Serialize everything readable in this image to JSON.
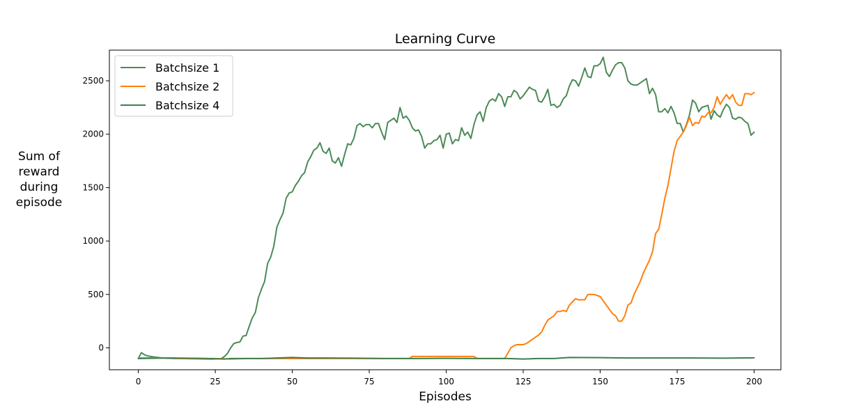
{
  "chart_data": {
    "type": "line",
    "title": "Learning Curve",
    "xlabel": "Episodes",
    "ylabel_lines": [
      "Sum of",
      "reward",
      "during",
      "episode"
    ],
    "xlim": [
      -9.4,
      208.7
    ],
    "ylim": [
      -205,
      2787
    ],
    "xticks": [
      0,
      25,
      50,
      75,
      100,
      125,
      150,
      175,
      200
    ],
    "yticks": [
      0,
      500,
      1000,
      1500,
      2000,
      2500
    ],
    "legend_position": "top-left",
    "grid": false,
    "series": [
      {
        "name": "Batchsize 1",
        "color": "#4a8a57",
        "points": [
          [
            0,
            -100
          ],
          [
            1,
            -45
          ],
          [
            2,
            -65
          ],
          [
            3,
            -75
          ],
          [
            5,
            -85
          ],
          [
            8,
            -95
          ],
          [
            12,
            -100
          ],
          [
            18,
            -102
          ],
          [
            24,
            -105
          ],
          [
            27,
            -100
          ],
          [
            28,
            -80
          ],
          [
            29,
            -50
          ],
          [
            30,
            0
          ],
          [
            31,
            40
          ],
          [
            32,
            50
          ],
          [
            33,
            55
          ],
          [
            34,
            110
          ],
          [
            35,
            115
          ],
          [
            36,
            200
          ],
          [
            37,
            280
          ],
          [
            38,
            330
          ],
          [
            39,
            470
          ],
          [
            40,
            550
          ],
          [
            41,
            620
          ],
          [
            42,
            790
          ],
          [
            43,
            850
          ],
          [
            44,
            950
          ],
          [
            45,
            1130
          ],
          [
            46,
            1200
          ],
          [
            47,
            1260
          ],
          [
            48,
            1400
          ],
          [
            49,
            1450
          ],
          [
            50,
            1460
          ],
          [
            51,
            1520
          ],
          [
            52,
            1560
          ],
          [
            53,
            1610
          ],
          [
            54,
            1640
          ],
          [
            55,
            1740
          ],
          [
            56,
            1790
          ],
          [
            57,
            1850
          ],
          [
            58,
            1870
          ],
          [
            59,
            1920
          ],
          [
            60,
            1840
          ],
          [
            61,
            1820
          ],
          [
            62,
            1870
          ],
          [
            63,
            1750
          ],
          [
            64,
            1730
          ],
          [
            65,
            1780
          ],
          [
            66,
            1700
          ],
          [
            67,
            1810
          ],
          [
            68,
            1910
          ],
          [
            69,
            1900
          ],
          [
            70,
            1960
          ],
          [
            71,
            2080
          ],
          [
            72,
            2100
          ],
          [
            73,
            2070
          ],
          [
            74,
            2090
          ],
          [
            75,
            2090
          ],
          [
            76,
            2060
          ],
          [
            77,
            2100
          ],
          [
            78,
            2100
          ],
          [
            79,
            2020
          ],
          [
            80,
            1950
          ],
          [
            81,
            2110
          ],
          [
            82,
            2130
          ],
          [
            83,
            2150
          ],
          [
            84,
            2110
          ],
          [
            85,
            2250
          ],
          [
            86,
            2150
          ],
          [
            87,
            2170
          ],
          [
            88,
            2130
          ],
          [
            89,
            2060
          ],
          [
            90,
            2030
          ],
          [
            91,
            2040
          ],
          [
            92,
            1980
          ],
          [
            93,
            1870
          ],
          [
            94,
            1910
          ],
          [
            95,
            1910
          ],
          [
            96,
            1940
          ],
          [
            97,
            1950
          ],
          [
            98,
            1990
          ],
          [
            99,
            1870
          ],
          [
            100,
            2000
          ],
          [
            101,
            2010
          ],
          [
            102,
            1910
          ],
          [
            103,
            1950
          ],
          [
            104,
            1940
          ],
          [
            105,
            2060
          ],
          [
            106,
            1990
          ],
          [
            107,
            2020
          ],
          [
            108,
            1960
          ],
          [
            109,
            2090
          ],
          [
            110,
            2180
          ],
          [
            111,
            2210
          ],
          [
            112,
            2120
          ],
          [
            113,
            2250
          ],
          [
            114,
            2310
          ],
          [
            115,
            2330
          ],
          [
            116,
            2310
          ],
          [
            117,
            2380
          ],
          [
            118,
            2350
          ],
          [
            119,
            2260
          ],
          [
            120,
            2350
          ],
          [
            121,
            2350
          ],
          [
            122,
            2410
          ],
          [
            123,
            2390
          ],
          [
            124,
            2330
          ],
          [
            125,
            2360
          ],
          [
            126,
            2400
          ],
          [
            127,
            2440
          ],
          [
            128,
            2420
          ],
          [
            129,
            2410
          ],
          [
            130,
            2310
          ],
          [
            131,
            2300
          ],
          [
            132,
            2350
          ],
          [
            133,
            2420
          ],
          [
            134,
            2270
          ],
          [
            135,
            2280
          ],
          [
            136,
            2250
          ],
          [
            137,
            2270
          ],
          [
            138,
            2330
          ],
          [
            139,
            2360
          ],
          [
            140,
            2450
          ],
          [
            141,
            2510
          ],
          [
            142,
            2500
          ],
          [
            143,
            2450
          ],
          [
            144,
            2530
          ],
          [
            145,
            2620
          ],
          [
            146,
            2540
          ],
          [
            147,
            2530
          ],
          [
            148,
            2640
          ],
          [
            149,
            2640
          ],
          [
            150,
            2660
          ],
          [
            151,
            2720
          ],
          [
            152,
            2580
          ],
          [
            153,
            2540
          ],
          [
            154,
            2600
          ],
          [
            155,
            2650
          ],
          [
            156,
            2670
          ],
          [
            157,
            2670
          ],
          [
            158,
            2620
          ],
          [
            159,
            2500
          ],
          [
            160,
            2470
          ],
          [
            161,
            2460
          ],
          [
            162,
            2460
          ],
          [
            163,
            2480
          ],
          [
            164,
            2500
          ],
          [
            165,
            2520
          ],
          [
            166,
            2380
          ],
          [
            167,
            2430
          ],
          [
            168,
            2370
          ],
          [
            169,
            2210
          ],
          [
            170,
            2210
          ],
          [
            171,
            2240
          ],
          [
            172,
            2200
          ],
          [
            173,
            2260
          ],
          [
            174,
            2200
          ],
          [
            175,
            2100
          ],
          [
            176,
            2100
          ],
          [
            177,
            2020
          ],
          [
            178,
            2090
          ],
          [
            179,
            2180
          ],
          [
            180,
            2320
          ],
          [
            181,
            2290
          ],
          [
            182,
            2210
          ],
          [
            183,
            2250
          ],
          [
            184,
            2260
          ],
          [
            185,
            2270
          ],
          [
            186,
            2140
          ],
          [
            187,
            2220
          ],
          [
            188,
            2180
          ],
          [
            189,
            2160
          ],
          [
            190,
            2230
          ],
          [
            191,
            2280
          ],
          [
            192,
            2250
          ],
          [
            193,
            2150
          ],
          [
            194,
            2140
          ],
          [
            195,
            2160
          ],
          [
            196,
            2150
          ],
          [
            197,
            2120
          ],
          [
            198,
            2100
          ],
          [
            199,
            1990
          ],
          [
            200,
            2020
          ]
        ]
      },
      {
        "name": "Batchsize 2",
        "color": "#ff7f0e",
        "points": [
          [
            0,
            -95
          ],
          [
            5,
            -93
          ],
          [
            10,
            -95
          ],
          [
            15,
            -100
          ],
          [
            20,
            -100
          ],
          [
            25,
            -100
          ],
          [
            30,
            -105
          ],
          [
            35,
            -100
          ],
          [
            40,
            -100
          ],
          [
            45,
            -100
          ],
          [
            50,
            -100
          ],
          [
            55,
            -100
          ],
          [
            60,
            -100
          ],
          [
            65,
            -100
          ],
          [
            70,
            -100
          ],
          [
            75,
            -100
          ],
          [
            80,
            -100
          ],
          [
            85,
            -100
          ],
          [
            88,
            -100
          ],
          [
            89,
            -80
          ],
          [
            90,
            -80
          ],
          [
            95,
            -80
          ],
          [
            100,
            -80
          ],
          [
            105,
            -80
          ],
          [
            109,
            -80
          ],
          [
            110,
            -100
          ],
          [
            115,
            -100
          ],
          [
            119,
            -100
          ],
          [
            120,
            -50
          ],
          [
            121,
            0
          ],
          [
            122,
            20
          ],
          [
            123,
            30
          ],
          [
            124,
            30
          ],
          [
            125,
            30
          ],
          [
            126,
            40
          ],
          [
            127,
            60
          ],
          [
            128,
            80
          ],
          [
            129,
            100
          ],
          [
            130,
            120
          ],
          [
            131,
            150
          ],
          [
            132,
            210
          ],
          [
            133,
            260
          ],
          [
            134,
            280
          ],
          [
            135,
            300
          ],
          [
            136,
            340
          ],
          [
            137,
            340
          ],
          [
            138,
            350
          ],
          [
            139,
            340
          ],
          [
            140,
            400
          ],
          [
            141,
            430
          ],
          [
            142,
            460
          ],
          [
            143,
            450
          ],
          [
            144,
            450
          ],
          [
            145,
            450
          ],
          [
            146,
            500
          ],
          [
            147,
            500
          ],
          [
            148,
            500
          ],
          [
            149,
            490
          ],
          [
            150,
            480
          ],
          [
            151,
            440
          ],
          [
            152,
            400
          ],
          [
            153,
            360
          ],
          [
            154,
            320
          ],
          [
            155,
            300
          ],
          [
            156,
            250
          ],
          [
            157,
            250
          ],
          [
            158,
            300
          ],
          [
            159,
            400
          ],
          [
            160,
            420
          ],
          [
            161,
            500
          ],
          [
            162,
            560
          ],
          [
            163,
            620
          ],
          [
            164,
            700
          ],
          [
            165,
            760
          ],
          [
            166,
            820
          ],
          [
            167,
            900
          ],
          [
            168,
            1070
          ],
          [
            169,
            1110
          ],
          [
            170,
            1250
          ],
          [
            171,
            1400
          ],
          [
            172,
            1520
          ],
          [
            173,
            1680
          ],
          [
            174,
            1840
          ],
          [
            175,
            1940
          ],
          [
            176,
            1980
          ],
          [
            177,
            2020
          ],
          [
            178,
            2080
          ],
          [
            179,
            2160
          ],
          [
            180,
            2080
          ],
          [
            181,
            2110
          ],
          [
            182,
            2100
          ],
          [
            183,
            2170
          ],
          [
            184,
            2160
          ],
          [
            185,
            2200
          ],
          [
            186,
            2200
          ],
          [
            187,
            2250
          ],
          [
            188,
            2350
          ],
          [
            189,
            2280
          ],
          [
            190,
            2330
          ],
          [
            191,
            2370
          ],
          [
            192,
            2330
          ],
          [
            193,
            2370
          ],
          [
            194,
            2300
          ],
          [
            195,
            2270
          ],
          [
            196,
            2270
          ],
          [
            197,
            2380
          ],
          [
            198,
            2380
          ],
          [
            199,
            2370
          ],
          [
            200,
            2390
          ]
        ]
      },
      {
        "name": "Batchsize 4",
        "color": "#3f7d4e",
        "points": [
          [
            0,
            -100
          ],
          [
            10,
            -95
          ],
          [
            20,
            -98
          ],
          [
            28,
            -105
          ],
          [
            30,
            -100
          ],
          [
            40,
            -100
          ],
          [
            45,
            -95
          ],
          [
            50,
            -90
          ],
          [
            55,
            -95
          ],
          [
            60,
            -95
          ],
          [
            70,
            -97
          ],
          [
            80,
            -100
          ],
          [
            90,
            -100
          ],
          [
            100,
            -98
          ],
          [
            110,
            -100
          ],
          [
            120,
            -100
          ],
          [
            125,
            -105
          ],
          [
            130,
            -100
          ],
          [
            135,
            -100
          ],
          [
            140,
            -90
          ],
          [
            150,
            -92
          ],
          [
            160,
            -95
          ],
          [
            170,
            -95
          ],
          [
            180,
            -95
          ],
          [
            190,
            -97
          ],
          [
            195,
            -95
          ],
          [
            200,
            -93
          ]
        ]
      }
    ]
  }
}
